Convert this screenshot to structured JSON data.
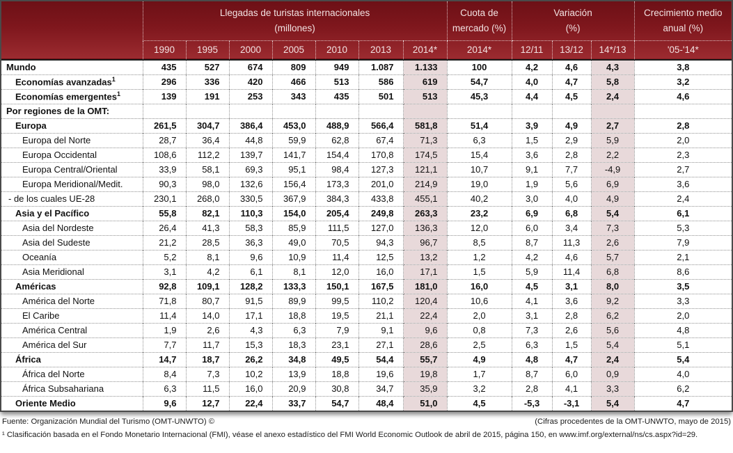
{
  "chart_data": {
    "type": "table",
    "title": "Llegadas de turistas internacionales",
    "header_groups": [
      {
        "line1": "Llegadas de turistas internacionales",
        "line2": "(millones)"
      },
      {
        "line1": "Cuota de",
        "line2": "mercado (%)"
      },
      {
        "line1": "Variación",
        "line2": "(%)"
      },
      {
        "line1": "Crecimiento medio",
        "line2": "anual (%)"
      }
    ],
    "columns": [
      "1990",
      "1995",
      "2000",
      "2005",
      "2010",
      "2013",
      "2014*",
      "2014*",
      "12/11",
      "13/12",
      "14*/13",
      "'05-'14*"
    ],
    "highlight_value_indexes": [
      6,
      10
    ],
    "rows": [
      {
        "label": "Mundo",
        "indent": 0,
        "bold": true,
        "sup": "",
        "values": [
          "435",
          "527",
          "674",
          "809",
          "949",
          "1.087",
          "1.133",
          "100",
          "4,2",
          "4,6",
          "4,3",
          "3,8"
        ]
      },
      {
        "label": "Economías avanzadas",
        "indent": 1,
        "bold": true,
        "sup": "1",
        "values": [
          "296",
          "336",
          "420",
          "466",
          "513",
          "586",
          "619",
          "54,7",
          "4,0",
          "4,7",
          "5,8",
          "3,2"
        ]
      },
      {
        "label": "Economías emergentes",
        "indent": 1,
        "bold": true,
        "sup": "1",
        "values": [
          "139",
          "191",
          "253",
          "343",
          "435",
          "501",
          "513",
          "45,3",
          "4,4",
          "4,5",
          "2,4",
          "4,6"
        ]
      },
      {
        "label": "Por regiones de la OMT:",
        "indent": 0,
        "bold": true,
        "sup": "",
        "values": [
          "",
          "",
          "",
          "",
          "",
          "",
          "",
          "",
          "",
          "",
          "",
          ""
        ]
      },
      {
        "label": "Europa",
        "indent": 1,
        "bold": true,
        "sup": "",
        "values": [
          "261,5",
          "304,7",
          "386,4",
          "453,0",
          "488,9",
          "566,4",
          "581,8",
          "51,4",
          "3,9",
          "4,9",
          "2,7",
          "2,8"
        ]
      },
      {
        "label": "Europa del Norte",
        "indent": 2,
        "bold": false,
        "sup": "",
        "values": [
          "28,7",
          "36,4",
          "44,8",
          "59,9",
          "62,8",
          "67,4",
          "71,3",
          "6,3",
          "1,5",
          "2,9",
          "5,9",
          "2,0"
        ]
      },
      {
        "label": "Europa Occidental",
        "indent": 2,
        "bold": false,
        "sup": "",
        "values": [
          "108,6",
          "112,2",
          "139,7",
          "141,7",
          "154,4",
          "170,8",
          "174,5",
          "15,4",
          "3,6",
          "2,8",
          "2,2",
          "2,3"
        ]
      },
      {
        "label": "Europa Central/Oriental",
        "indent": 2,
        "bold": false,
        "sup": "",
        "values": [
          "33,9",
          "58,1",
          "69,3",
          "95,1",
          "98,4",
          "127,3",
          "121,1",
          "10,7",
          "9,1",
          "7,7",
          "-4,9",
          "2,7"
        ]
      },
      {
        "label": "Europa Meridional/Medit.",
        "indent": 2,
        "bold": false,
        "sup": "",
        "values": [
          "90,3",
          "98,0",
          "132,6",
          "156,4",
          "173,3",
          "201,0",
          "214,9",
          "19,0",
          "1,9",
          "5,6",
          "6,9",
          "3,6"
        ]
      },
      {
        "label": "- de los cuales UE-28",
        "indent": 3,
        "bold": false,
        "sup": "",
        "values": [
          "230,1",
          "268,0",
          "330,5",
          "367,9",
          "384,3",
          "433,8",
          "455,1",
          "40,2",
          "3,0",
          "4,0",
          "4,9",
          "2,4"
        ]
      },
      {
        "label": "Asia y el Pacífico",
        "indent": 1,
        "bold": true,
        "sup": "",
        "values": [
          "55,8",
          "82,1",
          "110,3",
          "154,0",
          "205,4",
          "249,8",
          "263,3",
          "23,2",
          "6,9",
          "6,8",
          "5,4",
          "6,1"
        ]
      },
      {
        "label": "Asia del Nordeste",
        "indent": 2,
        "bold": false,
        "sup": "",
        "values": [
          "26,4",
          "41,3",
          "58,3",
          "85,9",
          "111,5",
          "127,0",
          "136,3",
          "12,0",
          "6,0",
          "3,4",
          "7,3",
          "5,3"
        ]
      },
      {
        "label": "Asia del Sudeste",
        "indent": 2,
        "bold": false,
        "sup": "",
        "values": [
          "21,2",
          "28,5",
          "36,3",
          "49,0",
          "70,5",
          "94,3",
          "96,7",
          "8,5",
          "8,7",
          "11,3",
          "2,6",
          "7,9"
        ]
      },
      {
        "label": "Oceanía",
        "indent": 2,
        "bold": false,
        "sup": "",
        "values": [
          "5,2",
          "8,1",
          "9,6",
          "10,9",
          "11,4",
          "12,5",
          "13,2",
          "1,2",
          "4,2",
          "4,6",
          "5,7",
          "2,1"
        ]
      },
      {
        "label": "Asia Meridional",
        "indent": 2,
        "bold": false,
        "sup": "",
        "values": [
          "3,1",
          "4,2",
          "6,1",
          "8,1",
          "12,0",
          "16,0",
          "17,1",
          "1,5",
          "5,9",
          "11,4",
          "6,8",
          "8,6"
        ]
      },
      {
        "label": "Américas",
        "indent": 1,
        "bold": true,
        "sup": "",
        "values": [
          "92,8",
          "109,1",
          "128,2",
          "133,3",
          "150,1",
          "167,5",
          "181,0",
          "16,0",
          "4,5",
          "3,1",
          "8,0",
          "3,5"
        ]
      },
      {
        "label": "América del Norte",
        "indent": 2,
        "bold": false,
        "sup": "",
        "values": [
          "71,8",
          "80,7",
          "91,5",
          "89,9",
          "99,5",
          "110,2",
          "120,4",
          "10,6",
          "4,1",
          "3,6",
          "9,2",
          "3,3"
        ]
      },
      {
        "label": "El Caribe",
        "indent": 2,
        "bold": false,
        "sup": "",
        "values": [
          "11,4",
          "14,0",
          "17,1",
          "18,8",
          "19,5",
          "21,1",
          "22,4",
          "2,0",
          "3,1",
          "2,8",
          "6,2",
          "2,0"
        ]
      },
      {
        "label": "América Central",
        "indent": 2,
        "bold": false,
        "sup": "",
        "values": [
          "1,9",
          "2,6",
          "4,3",
          "6,3",
          "7,9",
          "9,1",
          "9,6",
          "0,8",
          "7,3",
          "2,6",
          "5,6",
          "4,8"
        ]
      },
      {
        "label": "América del Sur",
        "indent": 2,
        "bold": false,
        "sup": "",
        "values": [
          "7,7",
          "11,7",
          "15,3",
          "18,3",
          "23,1",
          "27,1",
          "28,6",
          "2,5",
          "6,3",
          "1,5",
          "5,4",
          "5,1"
        ]
      },
      {
        "label": "África",
        "indent": 1,
        "bold": true,
        "sup": "",
        "values": [
          "14,7",
          "18,7",
          "26,2",
          "34,8",
          "49,5",
          "54,4",
          "55,7",
          "4,9",
          "4,8",
          "4,7",
          "2,4",
          "5,4"
        ]
      },
      {
        "label": "África del Norte",
        "indent": 2,
        "bold": false,
        "sup": "",
        "values": [
          "8,4",
          "7,3",
          "10,2",
          "13,9",
          "18,8",
          "19,6",
          "19,8",
          "1,7",
          "8,7",
          "6,0",
          "0,9",
          "4,0"
        ]
      },
      {
        "label": "África Subsahariana",
        "indent": 2,
        "bold": false,
        "sup": "",
        "values": [
          "6,3",
          "11,5",
          "16,0",
          "20,9",
          "30,8",
          "34,7",
          "35,9",
          "3,2",
          "2,8",
          "4,1",
          "3,3",
          "6,2"
        ]
      },
      {
        "label": "Oriente Medio",
        "indent": 1,
        "bold": true,
        "sup": "",
        "values": [
          "9,6",
          "12,7",
          "22,4",
          "33,7",
          "54,7",
          "48,4",
          "51,0",
          "4,5",
          "-5,3",
          "-3,1",
          "5,4",
          "4,7"
        ]
      }
    ]
  },
  "footer": {
    "fuente": "Fuente: Organización Mundial del Turismo (OMT-UNWTO) ©",
    "cifras": "(Cifras procedentes de la OMT-UNWTO, mayo de 2015)",
    "footnote": "¹ Clasificación basada en el Fondo Monetario Internacional (FMI), véase el anexo estadístico del FMI World Economic Outlook de abril de 2015, página 150, en www.imf.org/external/ns/cs.aspx?id=29."
  },
  "colors": {
    "header_maroon_top": "#6d1016",
    "header_maroon_bottom": "#9c2b30",
    "highlight_column": "#e8d9da",
    "outer_border": "#4a4a4a"
  }
}
